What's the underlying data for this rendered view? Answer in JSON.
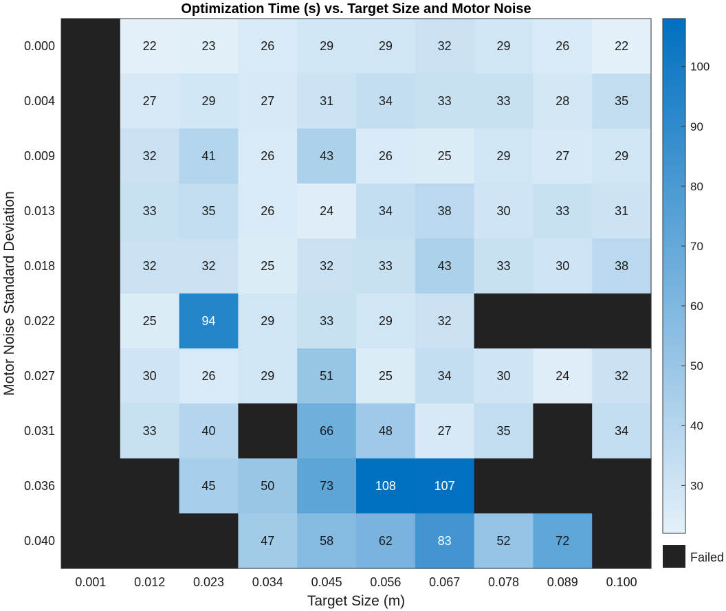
{
  "chart_data": {
    "type": "heatmap",
    "title": "Optimization Time (s) vs. Target Size and Motor Noise",
    "xlabel": "Target Size (m)",
    "ylabel": "Motor Noise Standard Deviation",
    "x_categories": [
      "0.001",
      "0.012",
      "0.023",
      "0.034",
      "0.045",
      "0.056",
      "0.067",
      "0.078",
      "0.089",
      "0.100"
    ],
    "y_categories": [
      "0.000",
      "0.004",
      "0.009",
      "0.013",
      "0.018",
      "0.022",
      "0.027",
      "0.031",
      "0.036",
      "0.040"
    ],
    "values": [
      [
        null,
        22,
        23,
        26,
        29,
        29,
        32,
        29,
        26,
        22
      ],
      [
        null,
        27,
        29,
        27,
        31,
        34,
        33,
        33,
        28,
        35
      ],
      [
        null,
        32,
        41,
        26,
        43,
        26,
        25,
        29,
        27,
        29
      ],
      [
        null,
        33,
        35,
        26,
        24,
        34,
        38,
        30,
        33,
        31
      ],
      [
        null,
        32,
        32,
        25,
        32,
        33,
        43,
        33,
        30,
        38
      ],
      [
        null,
        25,
        94,
        29,
        33,
        29,
        32,
        null,
        null,
        null
      ],
      [
        null,
        30,
        26,
        29,
        51,
        25,
        34,
        30,
        24,
        32
      ],
      [
        null,
        33,
        40,
        null,
        66,
        48,
        27,
        35,
        null,
        34
      ],
      [
        null,
        null,
        45,
        50,
        73,
        108,
        107,
        null,
        null,
        null
      ],
      [
        null,
        null,
        null,
        47,
        58,
        62,
        83,
        52,
        72,
        null
      ]
    ],
    "null_meaning": "Failed",
    "colorbar": {
      "min": 22,
      "max": 108,
      "ticks": [
        30,
        40,
        50,
        60,
        70,
        80,
        90,
        100
      ],
      "low_color": "#e4f0f9",
      "high_color": "#0070c0"
    },
    "legend": {
      "failed_label": "Failed",
      "failed_color": "#222222"
    }
  }
}
